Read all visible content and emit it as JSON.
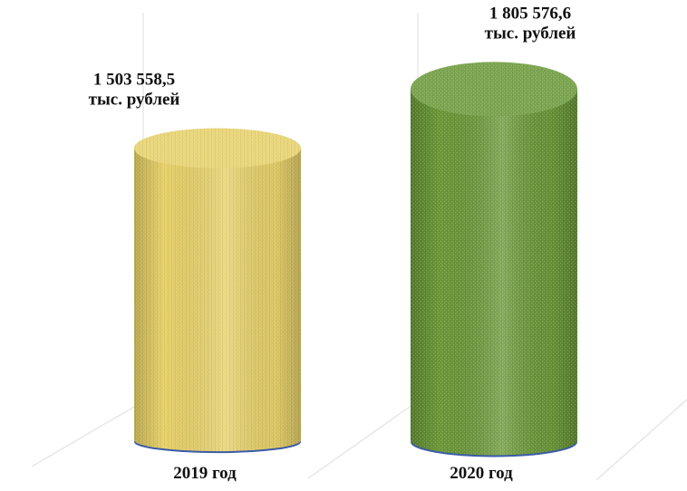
{
  "chart_data": {
    "type": "bar",
    "title": "",
    "xlabel": "",
    "ylabel": "",
    "ylim": [
      0,
      1900000
    ],
    "categories": [
      "2019 год",
      "2020 год"
    ],
    "values": [
      1503558.5,
      1805576.6
    ],
    "value_labels": [
      [
        "1 503 558,5",
        "тыс. рублей"
      ],
      [
        "1 805 576,6",
        "тыс. рублей"
      ]
    ],
    "colors": [
      "#E8D26A",
      "#6C9A3A"
    ],
    "base_color": "#3B5BA8",
    "grid": true
  }
}
